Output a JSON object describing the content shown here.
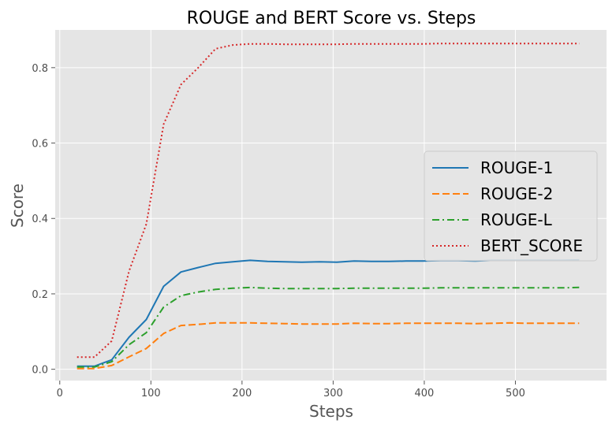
{
  "chart_data": {
    "type": "line",
    "title": "ROUGE and BERT Score vs. Steps",
    "xlabel": "Steps",
    "ylabel": "Score",
    "xlim": [
      -5,
      600
    ],
    "ylim": [
      -0.03,
      0.9
    ],
    "xticks": [
      0,
      100,
      200,
      300,
      400,
      500
    ],
    "yticks": [
      0.0,
      0.2,
      0.4,
      0.6,
      0.8
    ],
    "grid": true,
    "legend_position": "center-right",
    "x": [
      19,
      38,
      57,
      76,
      95,
      114,
      133,
      152,
      171,
      190,
      209,
      228,
      247,
      266,
      285,
      304,
      323,
      342,
      361,
      380,
      399,
      418,
      437,
      456,
      475,
      494,
      513,
      532,
      551,
      570
    ],
    "series": [
      {
        "name": "ROUGE-1",
        "color": "#1f77b4",
        "dash": "solid",
        "values": [
          0.008,
          0.008,
          0.025,
          0.085,
          0.132,
          0.22,
          0.258,
          0.27,
          0.281,
          0.285,
          0.289,
          0.286,
          0.285,
          0.284,
          0.285,
          0.284,
          0.287,
          0.286,
          0.286,
          0.287,
          0.287,
          0.288,
          0.288,
          0.287,
          0.289,
          0.289,
          0.289,
          0.289,
          0.289,
          0.29
        ]
      },
      {
        "name": "ROUGE-2",
        "color": "#ff7f0e",
        "dash": "dashed",
        "values": [
          0.002,
          0.002,
          0.01,
          0.033,
          0.055,
          0.095,
          0.116,
          0.119,
          0.123,
          0.123,
          0.123,
          0.122,
          0.121,
          0.12,
          0.12,
          0.12,
          0.122,
          0.121,
          0.121,
          0.122,
          0.122,
          0.122,
          0.122,
          0.121,
          0.122,
          0.123,
          0.122,
          0.122,
          0.122,
          0.122
        ]
      },
      {
        "name": "ROUGE-L",
        "color": "#2ca02c",
        "dash": "dashdot",
        "values": [
          0.006,
          0.006,
          0.02,
          0.065,
          0.097,
          0.165,
          0.195,
          0.205,
          0.212,
          0.215,
          0.217,
          0.215,
          0.214,
          0.214,
          0.214,
          0.214,
          0.215,
          0.215,
          0.215,
          0.215,
          0.215,
          0.216,
          0.216,
          0.216,
          0.216,
          0.216,
          0.216,
          0.216,
          0.216,
          0.217
        ]
      },
      {
        "name": "BERT_SCORE",
        "color": "#d62728",
        "dash": "dotted",
        "values": [
          0.032,
          0.032,
          0.075,
          0.26,
          0.385,
          0.65,
          0.755,
          0.8,
          0.85,
          0.86,
          0.863,
          0.863,
          0.862,
          0.862,
          0.862,
          0.862,
          0.863,
          0.863,
          0.863,
          0.863,
          0.863,
          0.864,
          0.864,
          0.864,
          0.864,
          0.864,
          0.864,
          0.864,
          0.864,
          0.864
        ]
      }
    ]
  }
}
